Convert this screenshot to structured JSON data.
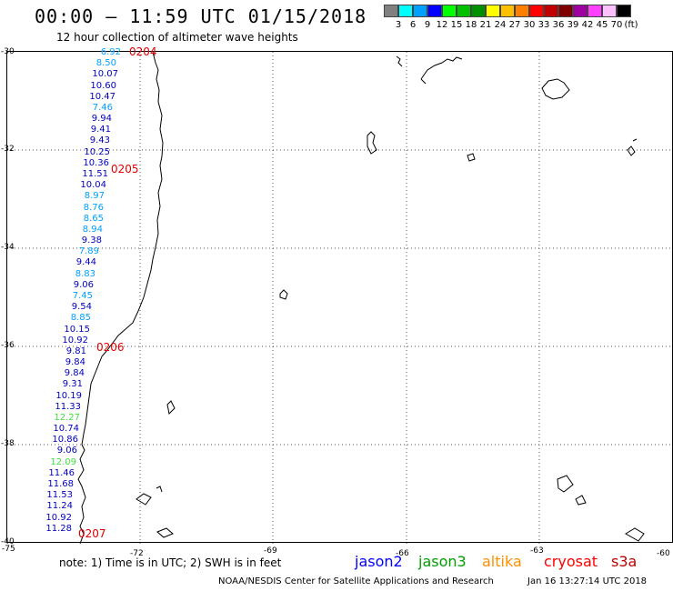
{
  "header": {
    "title": "00:00 – 11:59 UTC 01/15/2018",
    "subtitle": "12 hour collection of altimeter wave heights"
  },
  "color_scale": {
    "swatches": [
      "#808080",
      "#00ffff",
      "#00a0ff",
      "#0000ff",
      "#00ff00",
      "#00c000",
      "#009000",
      "#ffff00",
      "#ffc000",
      "#ff8000",
      "#ff0000",
      "#c00000",
      "#800000",
      "#a000a0",
      "#ff40ff",
      "#ffc0ff",
      "#000000"
    ],
    "labels": [
      "3",
      "6",
      "9",
      "12",
      "15",
      "18",
      "21",
      "24",
      "27",
      "30",
      "33",
      "36",
      "39",
      "42",
      "45",
      "70",
      "(ft)"
    ]
  },
  "axes": {
    "lat_labels": [
      "-30",
      "-32",
      "-34",
      "-36",
      "-38",
      "-40"
    ],
    "lon_labels": [
      "-75",
      "-72",
      "-69",
      "-66",
      "-63",
      "-60"
    ]
  },
  "wave_heights": [
    {
      "value": "6.92",
      "color": "#00a0ff"
    },
    {
      "value": "8.50",
      "color": "#00a0ff"
    },
    {
      "value": "10.07",
      "color": "#0000c0"
    },
    {
      "value": "10.60",
      "color": "#0000c0"
    },
    {
      "value": "10.47",
      "color": "#0000c0"
    },
    {
      "value": "7.46",
      "color": "#00a0ff"
    },
    {
      "value": "9.94",
      "color": "#0000c0"
    },
    {
      "value": "9.41",
      "color": "#0000c0"
    },
    {
      "value": "9.43",
      "color": "#0000c0"
    },
    {
      "value": "10.25",
      "color": "#0000c0"
    },
    {
      "value": "10.36",
      "color": "#0000c0"
    },
    {
      "value": "11.51",
      "color": "#0000c0"
    },
    {
      "value": "10.04",
      "color": "#0000c0"
    },
    {
      "value": "8.97",
      "color": "#00a0ff"
    },
    {
      "value": "8.76",
      "color": "#00a0ff"
    },
    {
      "value": "8.65",
      "color": "#00a0ff"
    },
    {
      "value": "8.94",
      "color": "#00a0ff"
    },
    {
      "value": "9.38",
      "color": "#0000c0"
    },
    {
      "value": "7.89",
      "color": "#00a0ff"
    },
    {
      "value": "9.44",
      "color": "#0000c0"
    },
    {
      "value": "8.83",
      "color": "#00a0ff"
    },
    {
      "value": "9.06",
      "color": "#0000c0"
    },
    {
      "value": "7.45",
      "color": "#00a0ff"
    },
    {
      "value": "9.54",
      "color": "#0000c0"
    },
    {
      "value": "8.85",
      "color": "#00a0ff"
    },
    {
      "value": "10.15",
      "color": "#0000c0"
    },
    {
      "value": "10.92",
      "color": "#0000c0"
    },
    {
      "value": "9.81",
      "color": "#0000c0"
    },
    {
      "value": "9.84",
      "color": "#0000c0"
    },
    {
      "value": "9.84",
      "color": "#0000c0"
    },
    {
      "value": "9.31",
      "color": "#0000c0"
    },
    {
      "value": "10.19",
      "color": "#0000c0"
    },
    {
      "value": "11.33",
      "color": "#0000c0"
    },
    {
      "value": "12.27",
      "color": "#40e040"
    },
    {
      "value": "10.74",
      "color": "#0000c0"
    },
    {
      "value": "10.86",
      "color": "#0000c0"
    },
    {
      "value": "9.06",
      "color": "#0000c0"
    },
    {
      "value": "12.09",
      "color": "#40e040"
    },
    {
      "value": "11.46",
      "color": "#0000c0"
    },
    {
      "value": "11.68",
      "color": "#0000c0"
    },
    {
      "value": "11.53",
      "color": "#0000c0"
    },
    {
      "value": "11.24",
      "color": "#0000c0"
    },
    {
      "value": "10.92",
      "color": "#0000c0"
    },
    {
      "value": "11.28",
      "color": "#0000c0"
    }
  ],
  "pass_times": [
    "0204",
    "0205",
    "0206",
    "0207"
  ],
  "footer": {
    "note": "note:  1) Time is in UTC;  2) SWH is in feet",
    "satellites": [
      {
        "name": "jason2",
        "color": "#0000ff"
      },
      {
        "name": "jason3",
        "color": "#00a000"
      },
      {
        "name": "altika",
        "color": "#ff9000"
      },
      {
        "name": "cryosat",
        "color": "#ff0000"
      },
      {
        "name": "s3a",
        "color": "#c00000"
      }
    ],
    "credit": "NOAA/NESDIS Center for Satellite Applications and Research",
    "timestamp": "Jan 16 13:27:14 UTC 2018"
  }
}
